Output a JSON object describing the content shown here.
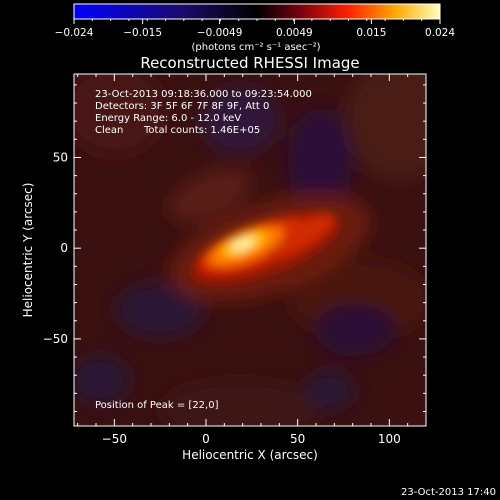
{
  "chart_data": {
    "type": "heatmap",
    "title": "Reconstructed RHESSI Image",
    "xlabel": "Heliocentric X (arcsec)",
    "ylabel": "Heliocentric Y (arcsec)",
    "xlim": [
      -72,
      120
    ],
    "ylim": [
      -98,
      96
    ],
    "x_ticks": [
      -50,
      0,
      50,
      100
    ],
    "y_ticks": [
      -50,
      0,
      50
    ],
    "colorbar": {
      "range": [
        -0.024,
        0.024
      ],
      "ticks": [
        "−0.024",
        "−0.015",
        "−0.0049",
        "0.0049",
        "0.015",
        "0.024"
      ],
      "unit_label": "(photons cm⁻² s⁻¹ asec⁻²)"
    },
    "annotations": {
      "time_range": "23-Oct-2013 09:18:36.000 to 09:23:54.000",
      "detectors": "Detectors: 3F 5F 6F 7F 8F 9F, Att 0",
      "energy_range": "Energy Range: 6.0 - 12.0 keV",
      "clean": "Clean",
      "total_counts": "Total counts: 1.46E+05",
      "peak": "Position of Peak = [22,0]"
    },
    "peak": [
      22,
      0
    ],
    "footer_timestamp": "23-Oct-2013 17:40"
  }
}
